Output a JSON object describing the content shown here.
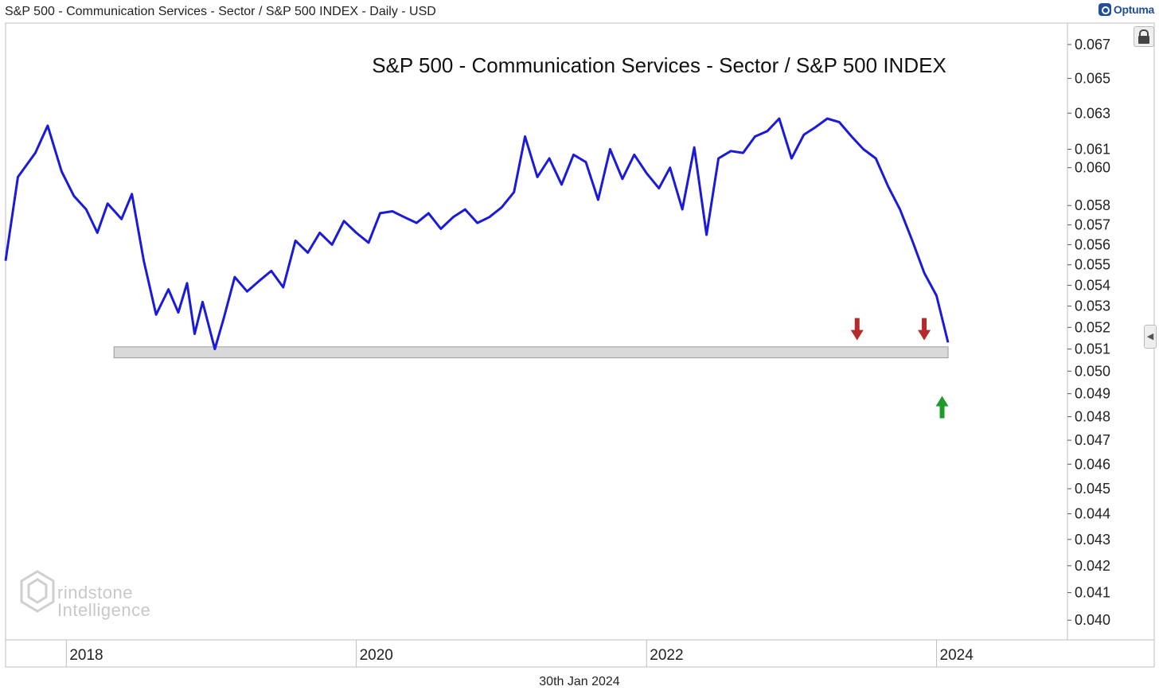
{
  "header": {
    "title": "S&P 500 - Communication Services - Sector / S&P 500 INDEX - Daily - USD",
    "brand": "Optuma"
  },
  "footer": {
    "date": "30th Jan 2024"
  },
  "watermark": {
    "line1": "rindstone",
    "line2": "Intelligence"
  },
  "colors": {
    "series": "#1a1adb",
    "support_band": "#d9d9d9",
    "arrow_down": "#b52a2a",
    "arrow_up": "#1e9c2a",
    "axis": "#bfbfbf"
  },
  "icons": {
    "lock": "lock-icon",
    "collapse": "chevron-left-icon",
    "brand": "optuma-logo-icon"
  },
  "chart_data": {
    "type": "line",
    "title": "S&P 500 - Communication Services - Sector / S&P 500 INDEX",
    "x_tick_labels": [
      "2018",
      "2020",
      "2022",
      "2024"
    ],
    "y_tick_labels": [
      "0.067",
      "0.065",
      "0.063",
      "0.061",
      "0.060",
      "0.058",
      "0.057",
      "0.056",
      "0.055",
      "0.054",
      "0.053",
      "0.052",
      "0.051",
      "0.050",
      "0.049",
      "0.048",
      "0.047",
      "0.046",
      "0.045",
      "0.044",
      "0.043",
      "0.042",
      "0.041",
      "0.040"
    ],
    "y_scale": "log",
    "xlim": [
      "2017-08-01",
      "2024-01-30"
    ],
    "ylim": [
      0.0393,
      0.0683
    ],
    "grid": false,
    "series": [
      {
        "points": [
          [
            "2017-08-01",
            0.0552
          ],
          [
            "2017-09-01",
            0.0595
          ],
          [
            "2017-10-15",
            0.0608
          ],
          [
            "2017-11-15",
            0.0623
          ],
          [
            "2017-12-20",
            0.0598
          ],
          [
            "2018-01-20",
            0.0585
          ],
          [
            "2018-02-20",
            0.0578
          ],
          [
            "2018-03-20",
            0.0566
          ],
          [
            "2018-04-15",
            0.0581
          ],
          [
            "2018-05-20",
            0.0573
          ],
          [
            "2018-06-15",
            0.0586
          ],
          [
            "2018-07-15",
            0.0552
          ],
          [
            "2018-08-15",
            0.0526
          ],
          [
            "2018-09-15",
            0.0538
          ],
          [
            "2018-10-10",
            0.0527
          ],
          [
            "2018-11-01",
            0.0541
          ],
          [
            "2018-11-20",
            0.0517
          ],
          [
            "2018-12-10",
            0.0532
          ],
          [
            "2019-01-10",
            0.051
          ],
          [
            "2019-02-01",
            0.0524
          ],
          [
            "2019-03-01",
            0.0544
          ],
          [
            "2019-04-01",
            0.0537
          ],
          [
            "2019-05-01",
            0.0542
          ],
          [
            "2019-06-01",
            0.0547
          ],
          [
            "2019-07-01",
            0.0539
          ],
          [
            "2019-08-01",
            0.0562
          ],
          [
            "2019-09-01",
            0.0556
          ],
          [
            "2019-10-01",
            0.0566
          ],
          [
            "2019-11-01",
            0.056
          ],
          [
            "2019-12-01",
            0.0572
          ],
          [
            "2020-01-01",
            0.0566
          ],
          [
            "2020-02-01",
            0.0561
          ],
          [
            "2020-03-01",
            0.0576
          ],
          [
            "2020-04-01",
            0.0577
          ],
          [
            "2020-05-01",
            0.0574
          ],
          [
            "2020-06-01",
            0.0571
          ],
          [
            "2020-07-01",
            0.0576
          ],
          [
            "2020-08-01",
            0.0568
          ],
          [
            "2020-09-01",
            0.0574
          ],
          [
            "2020-10-01",
            0.0578
          ],
          [
            "2020-11-01",
            0.0571
          ],
          [
            "2020-12-01",
            0.0574
          ],
          [
            "2021-01-01",
            0.0579
          ],
          [
            "2021-02-01",
            0.0587
          ],
          [
            "2021-03-01",
            0.0617
          ],
          [
            "2021-04-01",
            0.0595
          ],
          [
            "2021-05-01",
            0.0605
          ],
          [
            "2021-06-01",
            0.0591
          ],
          [
            "2021-07-01",
            0.0607
          ],
          [
            "2021-08-01",
            0.0603
          ],
          [
            "2021-09-01",
            0.0583
          ],
          [
            "2021-10-01",
            0.061
          ],
          [
            "2021-11-01",
            0.0594
          ],
          [
            "2021-12-01",
            0.0607
          ],
          [
            "2022-01-01",
            0.0597
          ],
          [
            "2022-02-01",
            0.0589
          ],
          [
            "2022-03-01",
            0.06
          ],
          [
            "2022-04-01",
            0.0578
          ],
          [
            "2022-05-01",
            0.0611
          ],
          [
            "2022-06-01",
            0.0565
          ],
          [
            "2022-07-01",
            0.0605
          ],
          [
            "2022-08-01",
            0.0609
          ],
          [
            "2022-09-01",
            0.0608
          ],
          [
            "2022-10-01",
            0.0617
          ],
          [
            "2022-11-01",
            0.062
          ],
          [
            "2022-12-01",
            0.0627
          ],
          [
            "2023-01-01",
            0.0605
          ],
          [
            "2023-02-01",
            0.0618
          ],
          [
            "2023-03-01",
            0.0622
          ],
          [
            "2023-04-01",
            0.0627
          ],
          [
            "2023-05-01",
            0.0625
          ],
          [
            "2023-06-01",
            0.0617
          ],
          [
            "2023-07-01",
            0.061
          ],
          [
            "2023-08-01",
            0.0605
          ],
          [
            "2023-09-01",
            0.059
          ],
          [
            "2023-10-01",
            0.0578
          ],
          [
            "2023-11-01",
            0.0562
          ],
          [
            "2023-12-01",
            0.0546
          ],
          [
            "2024-01-01",
            0.0535
          ],
          [
            "2024-01-30",
            0.0513
          ]
        ]
      }
    ],
    "annotations": {
      "support_band": [
        0.0506,
        0.0511
      ],
      "down_arrows": [
        [
          "2023-06-15",
          0.0514
        ],
        [
          "2023-12-01",
          0.0514
        ]
      ],
      "up_arrow": [
        "2024-01-15",
        0.0489
      ]
    }
  }
}
